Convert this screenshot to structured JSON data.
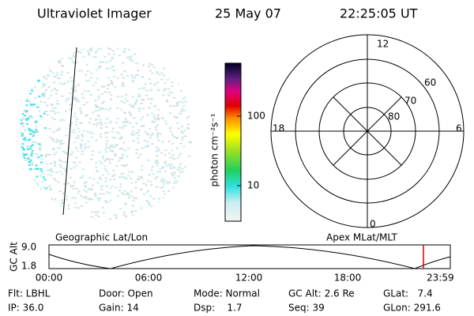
{
  "header": {
    "instrument": "Ultraviolet Imager",
    "date": "25 May 07",
    "time": "22:25:05 UT"
  },
  "colorbar": {
    "label": "photon cm⁻²s⁻¹",
    "ticks": [
      "100",
      "10"
    ]
  },
  "polar": {
    "hours": [
      "12",
      "18",
      "6",
      "0"
    ],
    "latitudes": [
      "60",
      "70",
      "80"
    ]
  },
  "timeline": {
    "left_label": "Geographic Lat/Lon",
    "right_label": "Apex MLat/MLT",
    "axis_label": "GC Alt",
    "alt_ticks": [
      "9.0",
      "1.8"
    ],
    "time_ticks": [
      "00:00",
      "06:00",
      "12:00",
      "18:00",
      "23:59"
    ]
  },
  "info": [
    [
      "Flt: LBHL",
      "Door: Open",
      "Mode: Normal",
      "GC Alt: 2.6 Re",
      "GLat:   7.4"
    ],
    [
      "IP: 36.0",
      "Gain: 14",
      "Dsp:    1.7",
      "Seq: 39",
      "GLon: 291.6"
    ]
  ]
}
